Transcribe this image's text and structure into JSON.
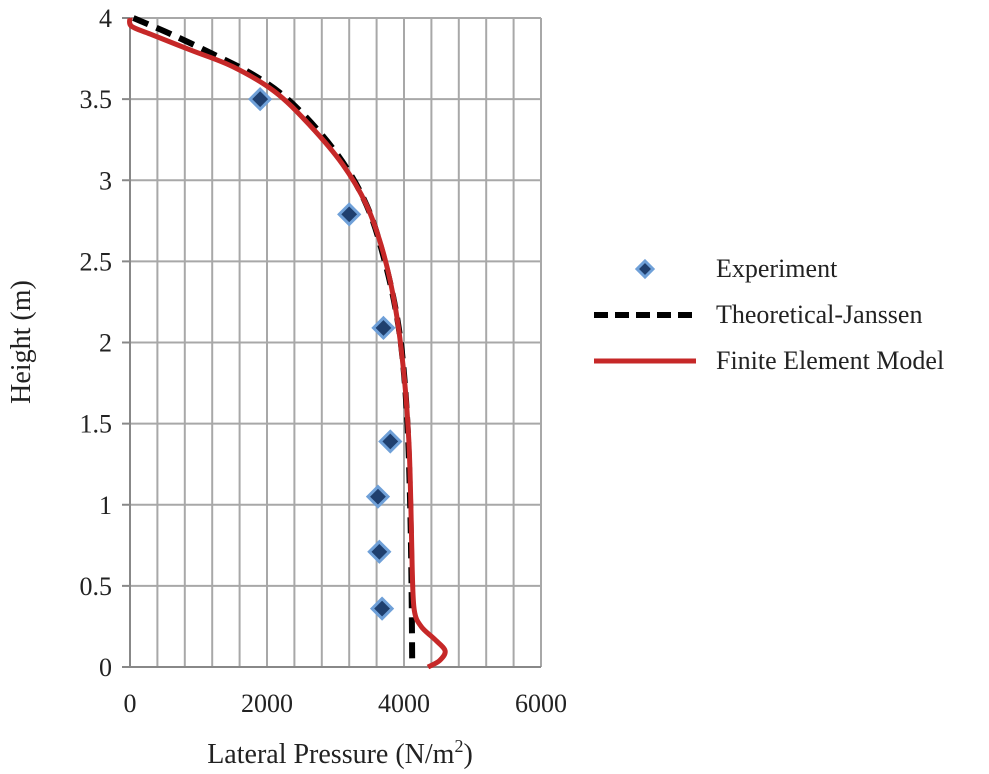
{
  "chart_data": {
    "type": "scatter",
    "xlabel": "Lateral Pressure (N/m",
    "xlabel_sup": "2",
    "xlabel_tail": ")",
    "ylabel": "Height (m)",
    "xlim": [
      0,
      6000
    ],
    "ylim": [
      0,
      4
    ],
    "x_ticks": [
      0,
      2000,
      4000,
      6000
    ],
    "y_ticks": [
      0,
      0.5,
      1,
      1.5,
      2,
      2.5,
      3,
      3.5,
      4
    ],
    "x_tick_labels": [
      "0",
      "2000",
      "4000",
      "6000"
    ],
    "y_tick_labels": [
      "0",
      "0.5",
      "1",
      "1.5",
      "2",
      "2.5",
      "3",
      "3.5",
      "4"
    ],
    "x_minor_step": 400,
    "grid": true,
    "legend_position": "right",
    "series": [
      {
        "name": "Experiment",
        "kind": "scatter",
        "color": "#3d6fb5",
        "points": [
          [
            1900,
            3.5
          ],
          [
            3200,
            2.79
          ],
          [
            3700,
            2.09
          ],
          [
            3800,
            1.39
          ],
          [
            3620,
            1.05
          ],
          [
            3640,
            0.71
          ],
          [
            3680,
            0.36
          ]
        ]
      },
      {
        "name": "Theoretical-Janssen",
        "kind": "line",
        "color": "#000000",
        "style": "dashed",
        "points": [
          [
            50,
            4.0
          ],
          [
            600,
            3.9
          ],
          [
            1200,
            3.78
          ],
          [
            1800,
            3.65
          ],
          [
            2300,
            3.5
          ],
          [
            2800,
            3.28
          ],
          [
            3200,
            3.05
          ],
          [
            3500,
            2.8
          ],
          [
            3720,
            2.5
          ],
          [
            3880,
            2.2
          ],
          [
            3980,
            1.9
          ],
          [
            4050,
            1.5
          ],
          [
            4090,
            1.0
          ],
          [
            4110,
            0.5
          ],
          [
            4120,
            0.0
          ]
        ]
      },
      {
        "name": "Finite Element Model",
        "kind": "line",
        "color": "#c62828",
        "style": "solid",
        "points": [
          [
            0,
            4.0
          ],
          [
            20,
            3.95
          ],
          [
            300,
            3.9
          ],
          [
            900,
            3.8
          ],
          [
            1500,
            3.7
          ],
          [
            2100,
            3.55
          ],
          [
            2600,
            3.35
          ],
          [
            3100,
            3.1
          ],
          [
            3450,
            2.85
          ],
          [
            3700,
            2.55
          ],
          [
            3880,
            2.2
          ],
          [
            4000,
            1.8
          ],
          [
            4070,
            1.4
          ],
          [
            4100,
            1.0
          ],
          [
            4120,
            0.6
          ],
          [
            4150,
            0.35
          ],
          [
            4250,
            0.25
          ],
          [
            4450,
            0.17
          ],
          [
            4600,
            0.1
          ],
          [
            4520,
            0.04
          ],
          [
            4350,
            0.0
          ]
        ]
      }
    ]
  }
}
